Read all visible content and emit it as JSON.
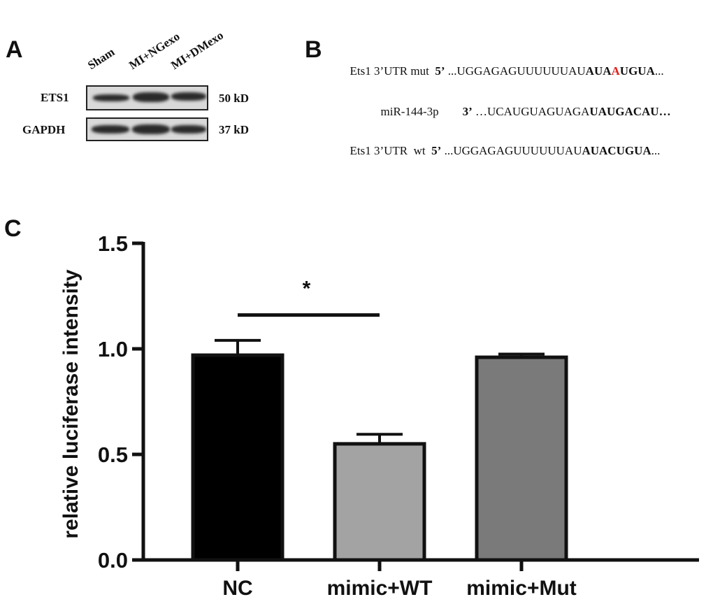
{
  "panel_a": {
    "label": "A",
    "lanes": [
      "Sham",
      "MI+NGexo",
      "MI+DMexo"
    ],
    "rows": [
      {
        "protein": "ETS1",
        "size": "50 kD"
      },
      {
        "protein": "GAPDH",
        "size": "37 kD"
      }
    ]
  },
  "panel_b": {
    "label": "B",
    "lines": [
      {
        "name": "Ets1 3’UTR mut",
        "end": "5’",
        "seq_plain": " ...UGGAGAGUUUUUUAU",
        "seq_bold1": "AUA",
        "seq_red": "A",
        "seq_bold2": "UGUA",
        "seq_tail": "..."
      },
      {
        "name": "miR-144-3p",
        "end": "3’",
        "seq_plain": " …UCAUGUAGUAGA",
        "seq_bold1": "UAUGACAU…",
        "seq_red": "",
        "seq_bold2": "",
        "seq_tail": ""
      },
      {
        "name": "Ets1 3’UTR  wt",
        "end": "5’",
        "seq_plain": " ...UGGAGAGUUUUUUAU",
        "seq_bold1": "AUACUGUA",
        "seq_red": "",
        "seq_bold2": "",
        "seq_tail": "..."
      }
    ]
  },
  "panel_c": {
    "label": "C"
  },
  "chart_data": {
    "type": "bar",
    "categories": [
      "NC",
      "mimic+WT",
      "mimic+Mut"
    ],
    "values": [
      0.97,
      0.55,
      0.96
    ],
    "errors": [
      0.07,
      0.045,
      0.015
    ],
    "bar_colors": [
      "#000000",
      "#a3a3a3",
      "#7a7a7a"
    ],
    "title": "",
    "xlabel": "",
    "ylabel": "relative luciferase intensity",
    "ylim": [
      0,
      1.5
    ],
    "yticks": [
      "0.0",
      "0.5",
      "1.0",
      "1.5"
    ],
    "significance": {
      "from": "NC",
      "to": "mimic+WT",
      "label": "*"
    }
  }
}
